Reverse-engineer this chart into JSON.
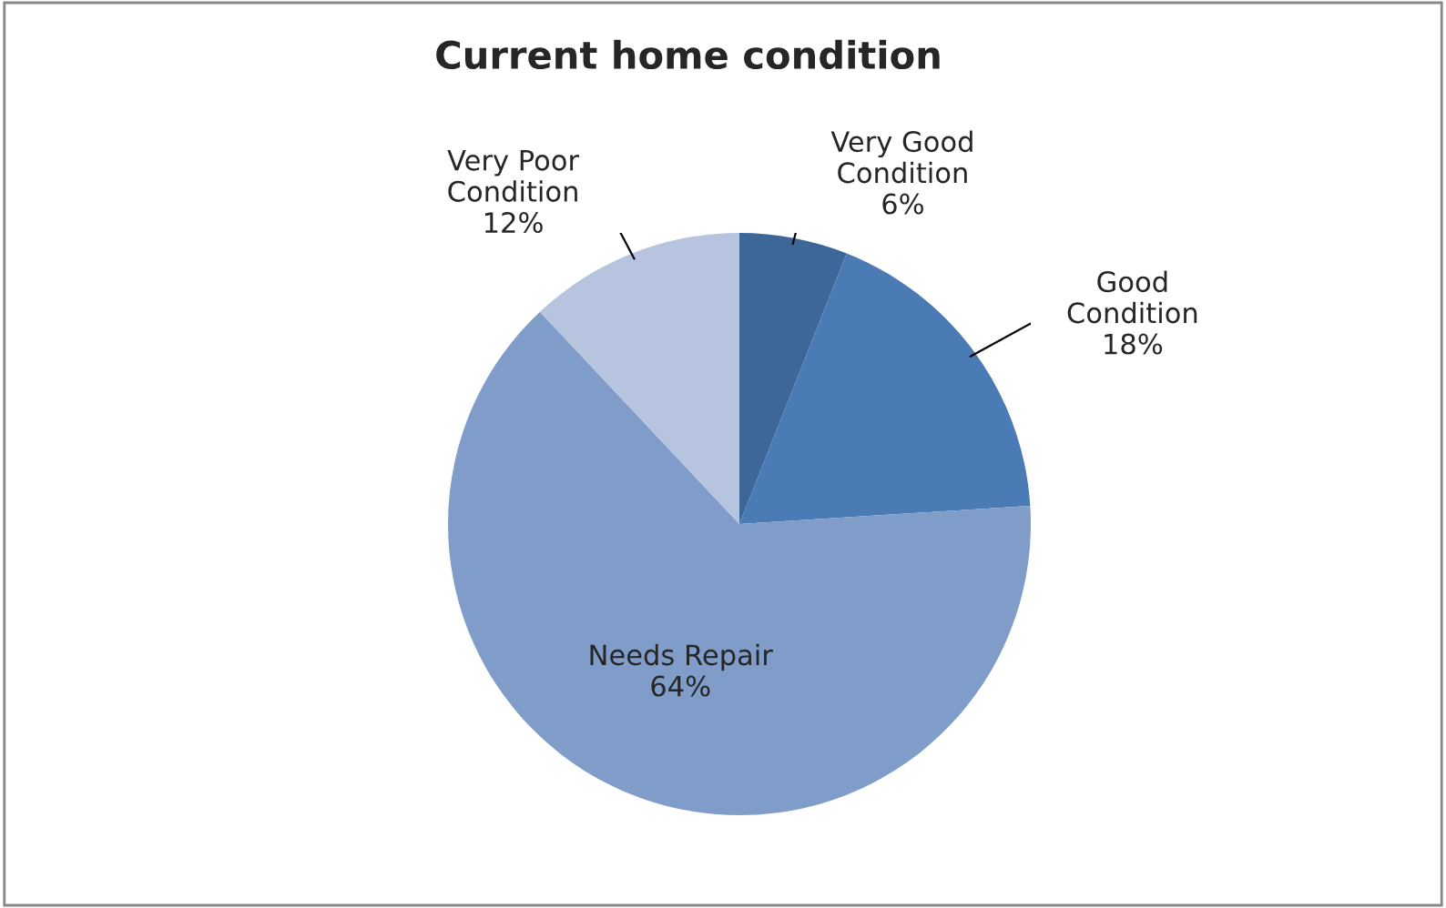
{
  "chart_data": {
    "type": "pie",
    "title": "Current home condition",
    "categories": [
      "Very Good Condition",
      "Good Condition",
      "Needs Repair",
      "Very Poor Condition"
    ],
    "values": [
      6,
      18,
      64,
      12
    ],
    "colors": [
      "#3d6699",
      "#4a7bb5",
      "#809dca",
      "#b6c4e0"
    ],
    "value_labels": [
      "6%",
      "18%",
      "64%",
      "12%"
    ],
    "legend": false
  }
}
